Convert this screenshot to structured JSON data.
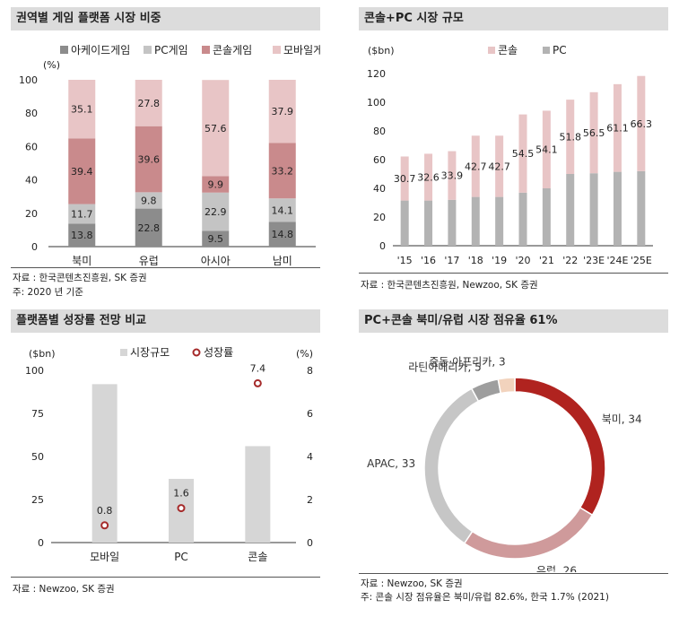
{
  "panels": {
    "p1": {
      "title": "권역별 게임 플랫폼 시장 비중",
      "source": "자료 : 한국콘텐츠진흥원, SK 증권",
      "note": "주: 2020 년 기준"
    },
    "p2": {
      "title": "콘솔+PC 시장 규모",
      "source": "자료 : 한국콘텐츠진흥원, Newzoo, SK 증권"
    },
    "p3": {
      "title": "플랫폼별 성장률 전망 비교",
      "source": "자료 : Newzoo, SK 증권"
    },
    "p4": {
      "title": "PC+콘솔 북미/유럽 시장 점유율 61%",
      "source": "자료 : Newzoo, SK 증권",
      "note": "주: 콘솔 시장 점유율은 북미/유럽 82.6%, 한국 1.7% (2021)"
    }
  },
  "chart_data": [
    {
      "type": "bar",
      "stacked": true,
      "title": "권역별 게임 플랫폼 시장 비중",
      "ylabel": "(%)",
      "ylim": [
        0,
        100
      ],
      "yticks": [
        0,
        20,
        40,
        60,
        80,
        100
      ],
      "categories": [
        "북미",
        "유럽",
        "아시아",
        "남미"
      ],
      "series": [
        {
          "name": "아케이드게임",
          "color": "#8c8c8c",
          "values": [
            13.8,
            22.8,
            9.5,
            14.8
          ]
        },
        {
          "name": "PC게임",
          "color": "#c4c4c4",
          "values": [
            11.7,
            9.8,
            22.9,
            14.1
          ]
        },
        {
          "name": "콘솔게임",
          "color": "#c98a8c",
          "values": [
            39.4,
            39.6,
            9.9,
            33.2
          ]
        },
        {
          "name": "모바일게임",
          "color": "#e8c5c6",
          "values": [
            35.1,
            27.8,
            57.6,
            37.9
          ]
        }
      ]
    },
    {
      "type": "bar",
      "stacked": true,
      "title": "콘솔+PC 시장 규모",
      "ylabel": "($bn)",
      "ylim": [
        0,
        120
      ],
      "yticks": [
        0,
        20,
        40,
        60,
        80,
        100,
        120
      ],
      "categories": [
        "'15",
        "'16",
        "'17",
        "'18",
        "'19",
        "'20",
        "'21",
        "'22",
        "'23E",
        "'24E",
        "'25E"
      ],
      "series": [
        {
          "name": "PC",
          "color": "#b3b3b3",
          "values": [
            31.5,
            31.5,
            32.0,
            34.0,
            34.0,
            37.0,
            40.0,
            50.0,
            50.5,
            51.5,
            52.0
          ]
        },
        {
          "name": "콘솔",
          "color": "#e8c5c6",
          "values": [
            30.7,
            32.6,
            33.9,
            42.7,
            42.7,
            54.5,
            54.1,
            51.8,
            56.5,
            61.1,
            66.3
          ]
        }
      ]
    },
    {
      "type": "bar+scatter",
      "title": "플랫폼별 성장률 전망 비교",
      "ylabel": "($bn)",
      "y2label": "(%)",
      "ylim": [
        0,
        100
      ],
      "yticks": [
        0,
        25,
        50,
        75,
        100
      ],
      "y2lim": [
        0,
        8
      ],
      "y2ticks": [
        0,
        2,
        4,
        6,
        8
      ],
      "categories": [
        "모바일",
        "PC",
        "콘솔"
      ],
      "series": [
        {
          "name": "시장규모",
          "color": "#d6d6d6",
          "values": [
            92,
            37,
            56
          ]
        },
        {
          "name": "성장률",
          "color": "#a52a2a",
          "values": [
            0.8,
            1.6,
            7.4
          ]
        }
      ]
    },
    {
      "type": "pie",
      "donut": true,
      "title": "PC+콘솔 북미/유럽 시장 점유율 61%",
      "slices": [
        {
          "label": "북미",
          "value": 34,
          "color": "#b0231f"
        },
        {
          "label": "유럽",
          "value": 26,
          "color": "#cf9a9b"
        },
        {
          "label": "APAC",
          "value": 33,
          "color": "#c6c6c6"
        },
        {
          "label": "라틴아메리카",
          "value": 5,
          "color": "#9e9e9e"
        },
        {
          "label": "중동·아프리카",
          "value": 3,
          "color": "#f2d3bd"
        }
      ]
    }
  ]
}
